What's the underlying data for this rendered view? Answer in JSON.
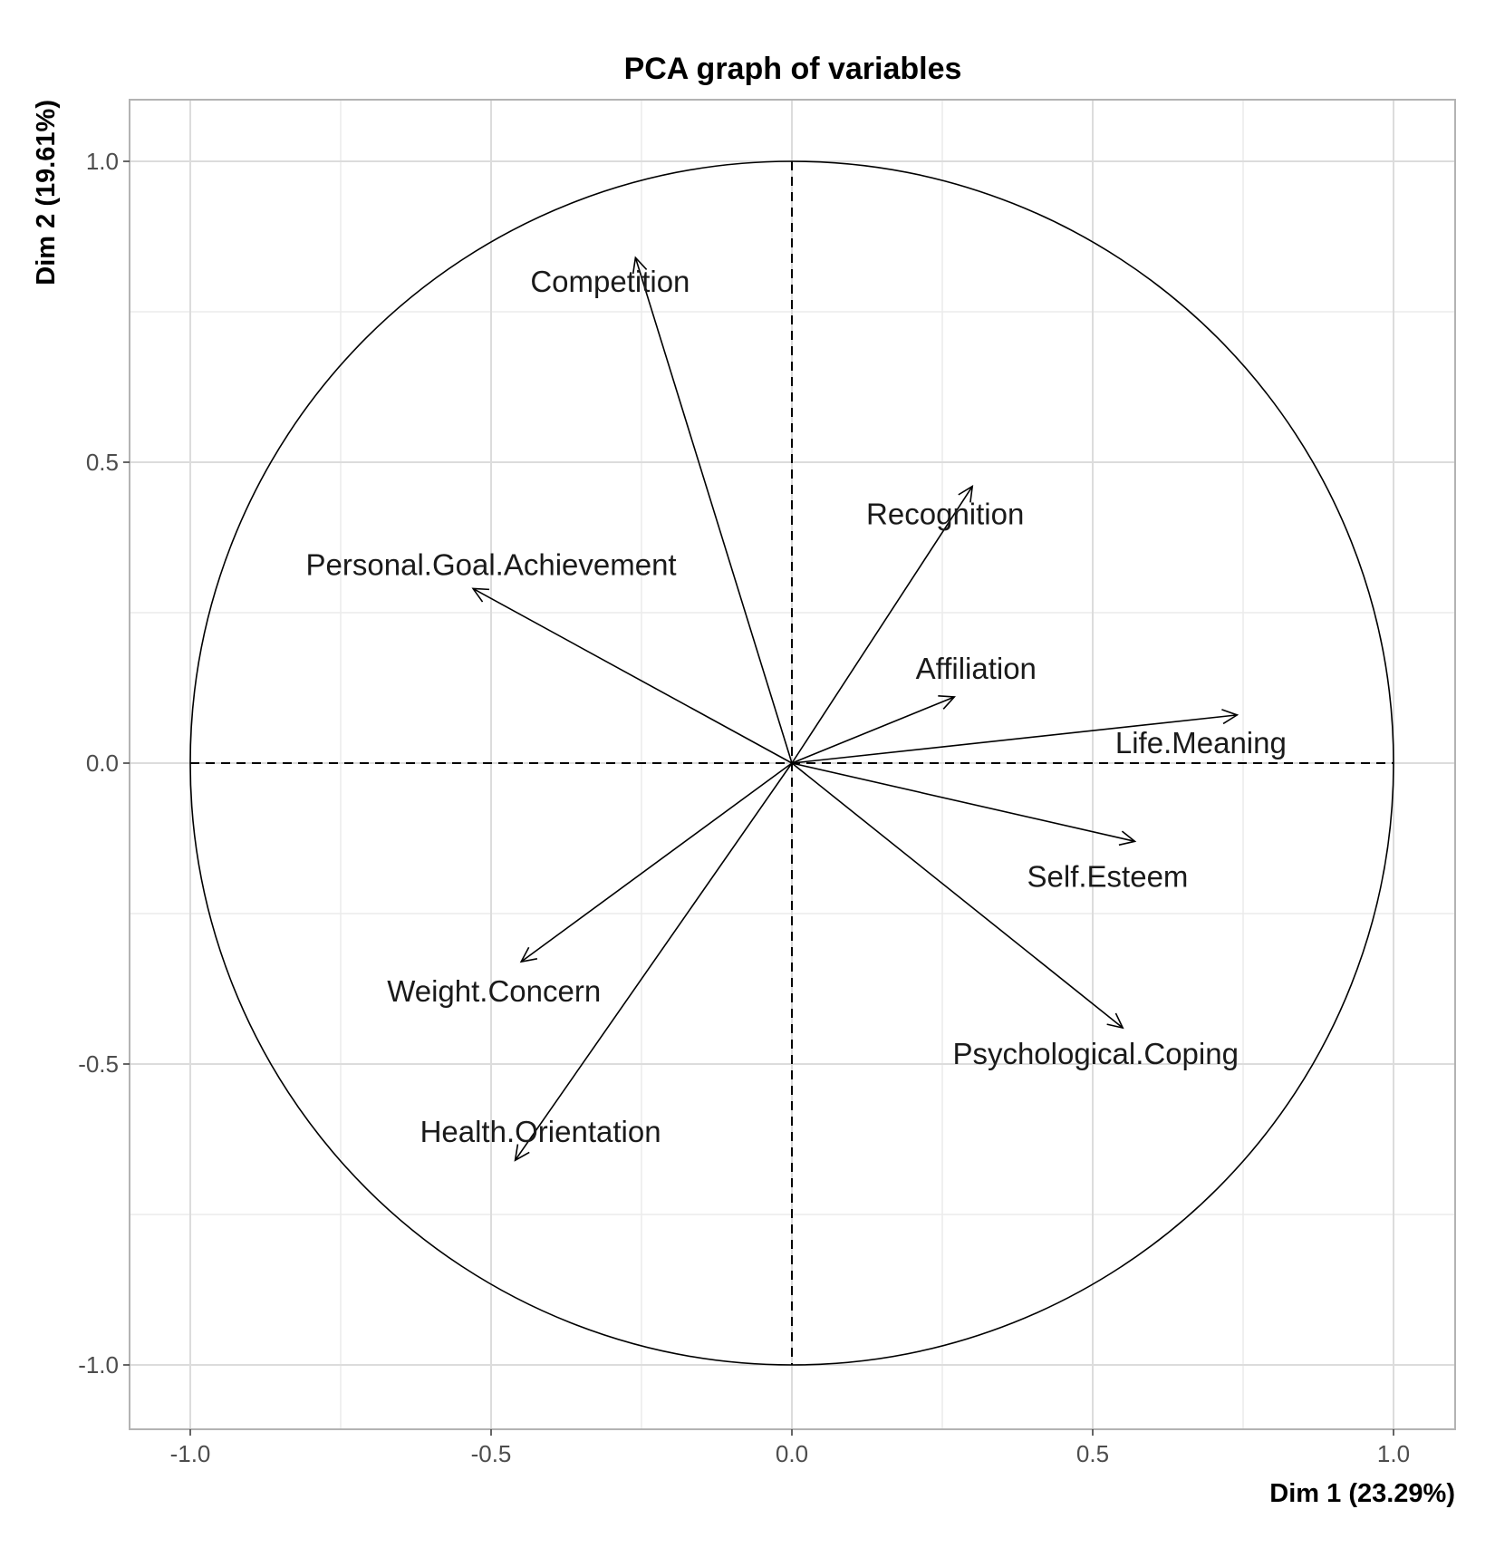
{
  "chart_data": {
    "type": "scatter",
    "subtype": "pca-correlation-circle",
    "title": "PCA graph of variables",
    "xlabel": "Dim 1 (23.29%)",
    "ylabel": "Dim 2 (19.61%)",
    "xlim": [
      -1.1,
      1.1
    ],
    "ylim": [
      -1.1,
      1.1
    ],
    "xticks": [
      -1.0,
      -0.5,
      0.0,
      0.5,
      1.0
    ],
    "yticks": [
      -1.0,
      -0.5,
      0.0,
      0.5,
      1.0
    ],
    "xtick_labels": [
      "-1.0",
      "-0.5",
      "0.0",
      "0.5",
      "1.0"
    ],
    "ytick_labels": [
      "-1.0",
      "-0.5",
      "0.0",
      "0.5",
      "1.0"
    ],
    "grid": true,
    "unit_circle": true,
    "variables": [
      {
        "name": "Competition",
        "x": -0.26,
        "y": 0.84
      },
      {
        "name": "Recognition",
        "x": 0.3,
        "y": 0.46
      },
      {
        "name": "Personal.Goal.Achievement",
        "x": -0.53,
        "y": 0.29
      },
      {
        "name": "Affiliation",
        "x": 0.27,
        "y": 0.11
      },
      {
        "name": "Life.Meaning",
        "x": 0.74,
        "y": 0.08
      },
      {
        "name": "Self.Esteem",
        "x": 0.57,
        "y": -0.13
      },
      {
        "name": "Psychological.Coping",
        "x": 0.55,
        "y": -0.44
      },
      {
        "name": "Weight.Concern",
        "x": -0.45,
        "y": -0.33
      },
      {
        "name": "Health.Orientation",
        "x": -0.46,
        "y": -0.66
      }
    ]
  }
}
